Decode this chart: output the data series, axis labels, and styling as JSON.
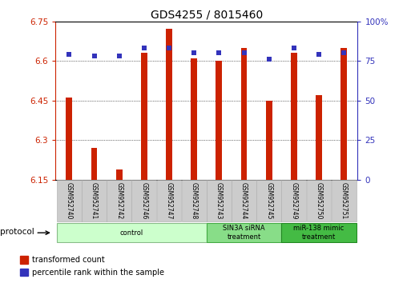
{
  "title": "GDS4255 / 8015460",
  "samples": [
    "GSM952740",
    "GSM952741",
    "GSM952742",
    "GSM952746",
    "GSM952747",
    "GSM952748",
    "GSM952743",
    "GSM952744",
    "GSM952745",
    "GSM952749",
    "GSM952750",
    "GSM952751"
  ],
  "transformed_counts": [
    6.46,
    6.27,
    6.19,
    6.63,
    6.72,
    6.61,
    6.6,
    6.65,
    6.45,
    6.63,
    6.47,
    6.65
  ],
  "percentile_ranks": [
    79,
    78,
    78,
    83,
    83,
    80,
    80,
    80,
    76,
    83,
    79,
    80
  ],
  "ylim_left": [
    6.15,
    6.75
  ],
  "ylim_right": [
    0,
    100
  ],
  "yticks_left": [
    6.15,
    6.3,
    6.45,
    6.6,
    6.75
  ],
  "yticks_right": [
    0,
    25,
    50,
    75,
    100
  ],
  "ytick_labels_left": [
    "6.15",
    "6.3",
    "6.45",
    "6.6",
    "6.75"
  ],
  "ytick_labels_right": [
    "0",
    "25",
    "50",
    "75",
    "100%"
  ],
  "bar_color": "#cc2200",
  "dot_color": "#3333bb",
  "protocol_groups": [
    {
      "label": "control",
      "start": 0,
      "end": 5,
      "color": "#ccffcc",
      "border_color": "#88bb88"
    },
    {
      "label": "SIN3A siRNA\ntreatment",
      "start": 6,
      "end": 8,
      "color": "#88dd88",
      "border_color": "#44aa44"
    },
    {
      "label": "miR-138 mimic\ntreatment",
      "start": 9,
      "end": 11,
      "color": "#44bb44",
      "border_color": "#228822"
    }
  ],
  "bar_width": 0.25,
  "title_fontsize": 10,
  "tick_fontsize": 7.5,
  "sample_fontsize": 5.5,
  "protocol_label": "protocol"
}
